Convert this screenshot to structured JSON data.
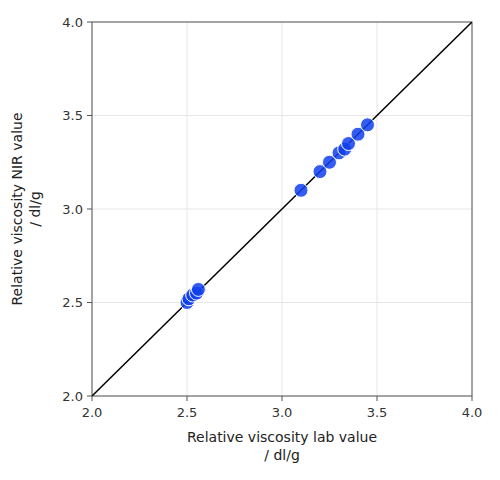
{
  "chart_data": {
    "type": "scatter",
    "x": [
      2.5,
      2.51,
      2.53,
      2.55,
      2.56,
      3.1,
      3.2,
      3.25,
      3.3,
      3.33,
      3.35,
      3.4,
      3.45
    ],
    "values": [
      2.5,
      2.52,
      2.54,
      2.55,
      2.57,
      3.1,
      3.2,
      3.25,
      3.3,
      3.32,
      3.35,
      3.4,
      3.45
    ],
    "color": "#1040ee",
    "reference_line": {
      "x": [
        2.0,
        4.0
      ],
      "y": [
        2.0,
        4.0
      ],
      "color": "#000000"
    },
    "xlabel": "Relative viscosity lab value\n/ dl/g",
    "ylabel": "Relative viscosity NIR value\n/ dl/g",
    "xlim": [
      2.0,
      4.0
    ],
    "ylim": [
      2.0,
      4.0
    ],
    "xticks": [
      {
        "value": 2.0,
        "label": "2.0"
      },
      {
        "value": 2.5,
        "label": "2.5"
      },
      {
        "value": 3.0,
        "label": "3.0"
      },
      {
        "value": 3.5,
        "label": "3.5"
      },
      {
        "value": 4.0,
        "label": "4.0"
      }
    ],
    "yticks": [
      {
        "value": 2.0,
        "label": "2.0"
      },
      {
        "value": 2.5,
        "label": "2.5"
      },
      {
        "value": 3.0,
        "label": "3.0"
      },
      {
        "value": 3.5,
        "label": "3.5"
      },
      {
        "value": 4.0,
        "label": "4.0"
      }
    ]
  }
}
